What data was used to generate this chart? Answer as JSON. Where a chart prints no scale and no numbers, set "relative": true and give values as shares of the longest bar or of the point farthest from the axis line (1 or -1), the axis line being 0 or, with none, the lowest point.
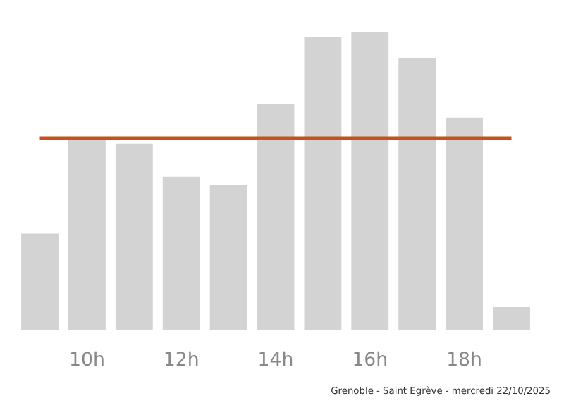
{
  "chart_data": {
    "type": "bar",
    "relative": true,
    "categories": [
      null,
      "10h",
      null,
      "12h",
      null,
      "14h",
      null,
      "16h",
      null,
      "18h",
      null
    ],
    "values": [
      0.325,
      0.65,
      0.627,
      0.516,
      0.488,
      0.76,
      0.983,
      1,
      0.912,
      0.714,
      0.078
    ],
    "color": "#d3d3d3",
    "ref_lines": [
      {
        "axis": "y",
        "value": 0.645,
        "color": "#c8501e"
      }
    ],
    "annotations": [
      "Grenoble - Saint Egrève - mercredi 22/10/2025"
    ],
    "grid": false
  }
}
